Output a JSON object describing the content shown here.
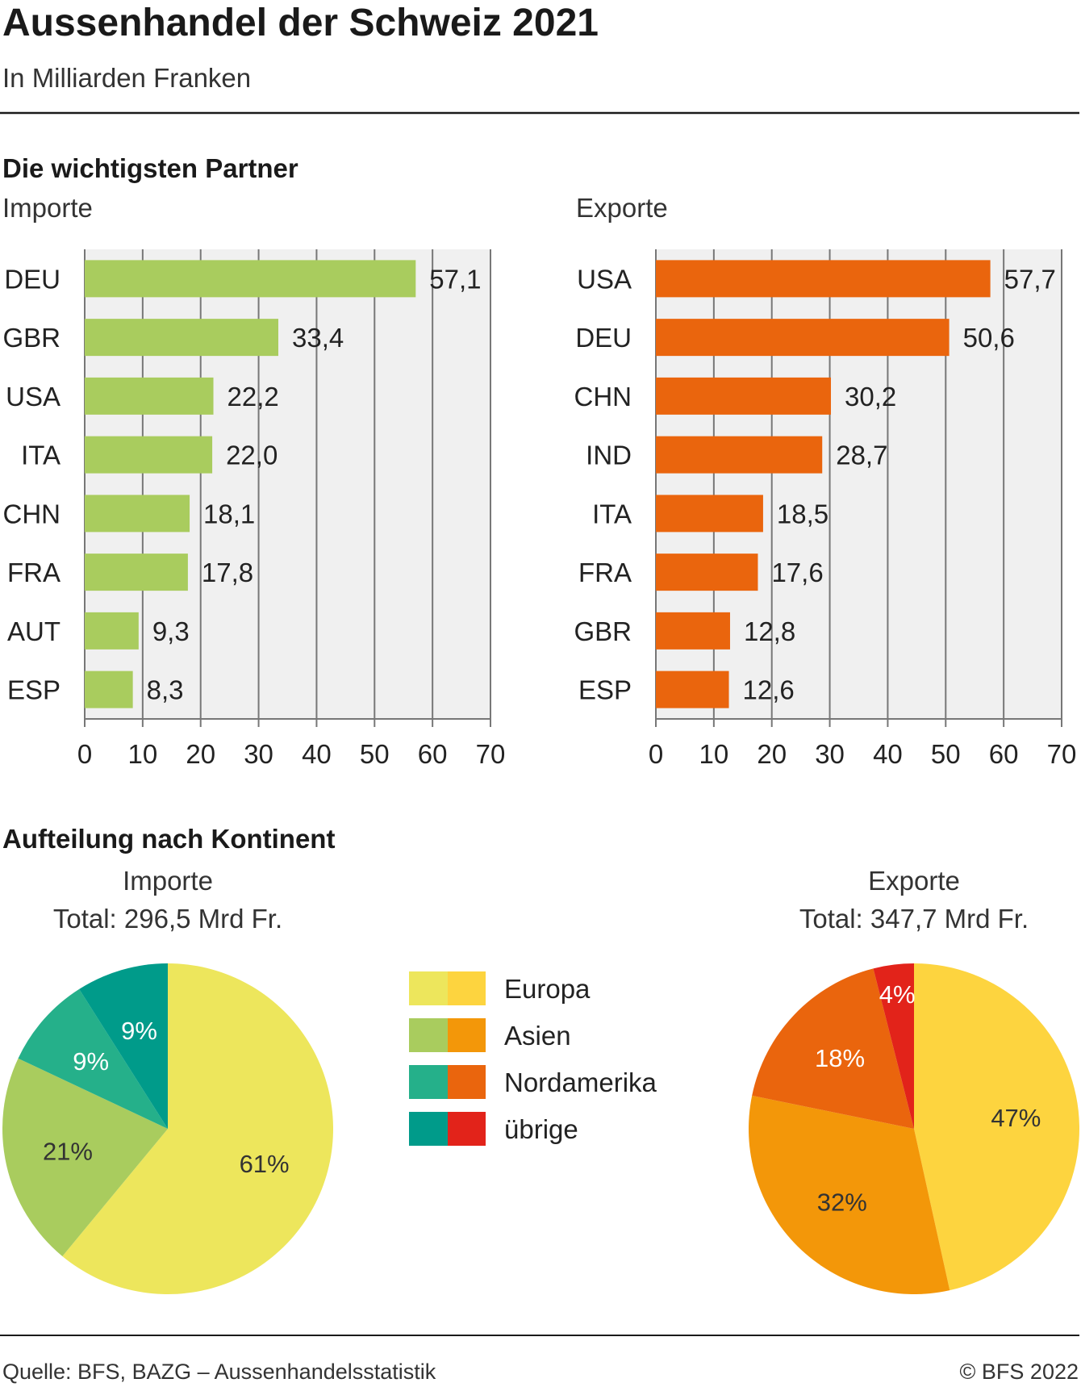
{
  "header": {
    "title": "Aussenhandel der Schweiz 2021",
    "subtitle": "In Milliarden Franken"
  },
  "sections": {
    "partners": "Die wichtigsten Partner",
    "continents": "Aufteilung nach Kontinent"
  },
  "chart_data": [
    {
      "type": "bar",
      "orientation": "horizontal",
      "panel_label": "Importe",
      "categories": [
        "DEU",
        "GBR",
        "USA",
        "ITA",
        "CHN",
        "FRA",
        "AUT",
        "ESP"
      ],
      "values": [
        57.1,
        33.4,
        22.2,
        22.0,
        18.1,
        17.8,
        9.3,
        8.3
      ],
      "value_labels": [
        "57,1",
        "33,4",
        "22,2",
        "22,0",
        "18,1",
        "17,8",
        "9,3",
        "8,3"
      ],
      "xlim": [
        0,
        70
      ],
      "xticks": [
        0,
        10,
        20,
        30,
        40,
        50,
        60,
        70
      ],
      "grid": true,
      "color": "#a9cc5e"
    },
    {
      "type": "bar",
      "orientation": "horizontal",
      "panel_label": "Exporte",
      "categories": [
        "USA",
        "DEU",
        "CHN",
        "IND",
        "ITA",
        "FRA",
        "GBR",
        "ESP"
      ],
      "values": [
        57.7,
        50.6,
        30.2,
        28.7,
        18.5,
        17.6,
        12.8,
        12.6
      ],
      "value_labels": [
        "57,7",
        "50,6",
        "30,2",
        "28,7",
        "18,5",
        "17,6",
        "12,8",
        "12,6"
      ],
      "xlim": [
        0,
        70
      ],
      "xticks": [
        0,
        10,
        20,
        30,
        40,
        50,
        60,
        70
      ],
      "grid": true,
      "color": "#ea650d"
    },
    {
      "type": "pie",
      "panel_label": "Importe",
      "total_label": "Total: 296,5 Mrd Fr.",
      "categories": [
        "Europa",
        "Asien",
        "Nordamerika",
        "übrige"
      ],
      "values": [
        61,
        21,
        9,
        9
      ],
      "value_labels": [
        "61%",
        "21%",
        "9%",
        "9%"
      ],
      "colors": [
        "#ede65c",
        "#a9cc5e",
        "#25b08a",
        "#009b8a"
      ]
    },
    {
      "type": "pie",
      "panel_label": "Exporte",
      "total_label": "Total: 347,7 Mrd Fr.",
      "categories": [
        "Europa",
        "Asien",
        "Nordamerika",
        "übrige"
      ],
      "values": [
        47,
        32,
        18,
        4
      ],
      "value_labels": [
        "47%",
        "32%",
        "18%",
        "4%"
      ],
      "colors": [
        "#fdd43f",
        "#f39709",
        "#ea650d",
        "#e2231a"
      ]
    }
  ],
  "legend": {
    "items": [
      "Europa",
      "Asien",
      "Nordamerika",
      "übrige"
    ],
    "import_colors": [
      "#ede65c",
      "#a9cc5e",
      "#25b08a",
      "#009b8a"
    ],
    "export_colors": [
      "#fdd43f",
      "#f39709",
      "#ea650d",
      "#e2231a"
    ]
  },
  "footer": {
    "source": "Quelle: BFS, BAZG – Aussenhandelsstatistik",
    "copyright": "© BFS 2022"
  }
}
